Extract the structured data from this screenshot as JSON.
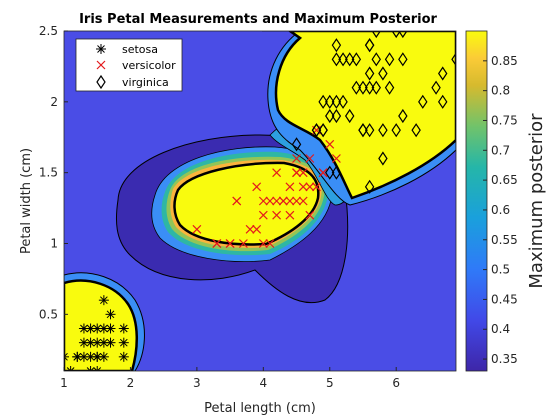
{
  "chart_data": {
    "type": "scatter",
    "title": "Iris Petal Measurements and Maximum Posterior",
    "xlabel": "Petal length (cm)",
    "ylabel": "Petal width (cm)",
    "colorbar_label": "Maximum posterior",
    "xlim": [
      1,
      6.9
    ],
    "ylim": [
      0.1,
      2.5
    ],
    "xticks": [
      "1",
      "2",
      "3",
      "4",
      "5",
      "6"
    ],
    "yticks": [
      "0.5",
      "1",
      "1.5",
      "2",
      "2.5"
    ],
    "colorbar_ticks": [
      "0.35",
      "0.4",
      "0.45",
      "0.5",
      "0.55",
      "0.6",
      "0.65",
      "0.7",
      "0.75",
      "0.8",
      "0.85"
    ],
    "colorbar_range": [
      0.33,
      0.9
    ],
    "colors": {
      "low": "#3e26a8",
      "mid": "#2eb7a4",
      "high": "#f9fb0e",
      "boundary": "#000000"
    },
    "legend_position": "top-left",
    "series": [
      {
        "name": "setosa",
        "marker": "asterisk",
        "color": "#000000",
        "points": [
          [
            1.4,
            0.2
          ],
          [
            1.3,
            0.2
          ],
          [
            1.5,
            0.2
          ],
          [
            1.4,
            0.3
          ],
          [
            1.7,
            0.4
          ],
          [
            1.5,
            0.1
          ],
          [
            1.1,
            0.1
          ],
          [
            1.2,
            0.2
          ],
          [
            1.3,
            0.4
          ],
          [
            1.6,
            0.2
          ],
          [
            1.9,
            0.2
          ],
          [
            1.6,
            0.4
          ],
          [
            1.5,
            0.4
          ],
          [
            1.0,
            0.2
          ],
          [
            1.7,
            0.5
          ],
          [
            1.9,
            0.4
          ],
          [
            1.6,
            0.6
          ],
          [
            1.4,
            0.1
          ],
          [
            1.2,
            0.2
          ],
          [
            1.5,
            0.3
          ],
          [
            1.3,
            0.3
          ],
          [
            1.6,
            0.3
          ],
          [
            1.7,
            0.3
          ],
          [
            1.4,
            0.4
          ],
          [
            1.9,
            0.3
          ],
          [
            1.5,
            0.2
          ]
        ]
      },
      {
        "name": "versicolor",
        "marker": "x",
        "color": "#e41a1c",
        "points": [
          [
            4.7,
            1.4
          ],
          [
            4.5,
            1.5
          ],
          [
            4.9,
            1.5
          ],
          [
            4.0,
            1.3
          ],
          [
            4.6,
            1.5
          ],
          [
            4.5,
            1.3
          ],
          [
            4.7,
            1.6
          ],
          [
            3.3,
            1.0
          ],
          [
            4.6,
            1.3
          ],
          [
            3.9,
            1.4
          ],
          [
            3.5,
            1.0
          ],
          [
            4.2,
            1.5
          ],
          [
            4.0,
            1.0
          ],
          [
            3.6,
            1.3
          ],
          [
            4.4,
            1.4
          ],
          [
            4.1,
            1.0
          ],
          [
            4.5,
            1.5
          ],
          [
            3.9,
            1.1
          ],
          [
            4.8,
            1.8
          ],
          [
            4.3,
            1.3
          ],
          [
            5.0,
            1.7
          ],
          [
            3.8,
            1.1
          ],
          [
            3.7,
            1.0
          ],
          [
            5.1,
            1.6
          ],
          [
            4.4,
            1.3
          ],
          [
            4.7,
            1.2
          ],
          [
            4.1,
            1.3
          ],
          [
            3.0,
            1.1
          ],
          [
            4.2,
            1.2
          ],
          [
            4.3,
            1.3
          ],
          [
            4.9,
            1.5
          ],
          [
            4.4,
            1.2
          ],
          [
            4.6,
            1.4
          ],
          [
            3.3,
            1.0
          ],
          [
            4.8,
            1.4
          ],
          [
            4.0,
            1.2
          ],
          [
            4.2,
            1.3
          ],
          [
            4.5,
            1.6
          ],
          [
            3.6,
            1.3
          ],
          [
            3.5,
            1.0
          ]
        ]
      },
      {
        "name": "virginica",
        "marker": "diamond",
        "color": "#000000",
        "points": [
          [
            6.0,
            2.5
          ],
          [
            5.1,
            1.9
          ],
          [
            5.9,
            2.1
          ],
          [
            5.6,
            1.8
          ],
          [
            5.8,
            2.2
          ],
          [
            6.6,
            2.1
          ],
          [
            4.5,
            1.7
          ],
          [
            6.3,
            1.8
          ],
          [
            5.8,
            1.8
          ],
          [
            6.1,
            2.5
          ],
          [
            5.1,
            2.0
          ],
          [
            5.3,
            1.9
          ],
          [
            5.5,
            2.1
          ],
          [
            5.0,
            2.0
          ],
          [
            5.1,
            2.4
          ],
          [
            5.3,
            2.3
          ],
          [
            5.5,
            1.8
          ],
          [
            6.7,
            2.2
          ],
          [
            6.9,
            2.3
          ],
          [
            5.0,
            1.5
          ],
          [
            5.7,
            2.3
          ],
          [
            4.9,
            2.0
          ],
          [
            6.7,
            2.0
          ],
          [
            4.9,
            1.8
          ],
          [
            5.7,
            2.1
          ],
          [
            6.0,
            1.8
          ],
          [
            4.8,
            1.8
          ],
          [
            4.9,
            1.8
          ],
          [
            5.6,
            2.1
          ],
          [
            5.8,
            1.6
          ],
          [
            6.1,
            1.9
          ],
          [
            6.4,
            2.0
          ],
          [
            5.6,
            2.2
          ],
          [
            5.1,
            1.5
          ],
          [
            5.6,
            1.4
          ],
          [
            6.1,
            2.3
          ],
          [
            5.6,
            2.4
          ],
          [
            5.5,
            1.8
          ],
          [
            4.8,
            1.8
          ],
          [
            5.4,
            2.1
          ],
          [
            5.6,
            2.4
          ],
          [
            5.1,
            2.3
          ],
          [
            5.9,
            2.3
          ],
          [
            5.7,
            2.5
          ],
          [
            5.2,
            2.3
          ],
          [
            5.0,
            1.9
          ],
          [
            5.2,
            2.0
          ],
          [
            5.4,
            2.3
          ]
        ]
      }
    ]
  }
}
